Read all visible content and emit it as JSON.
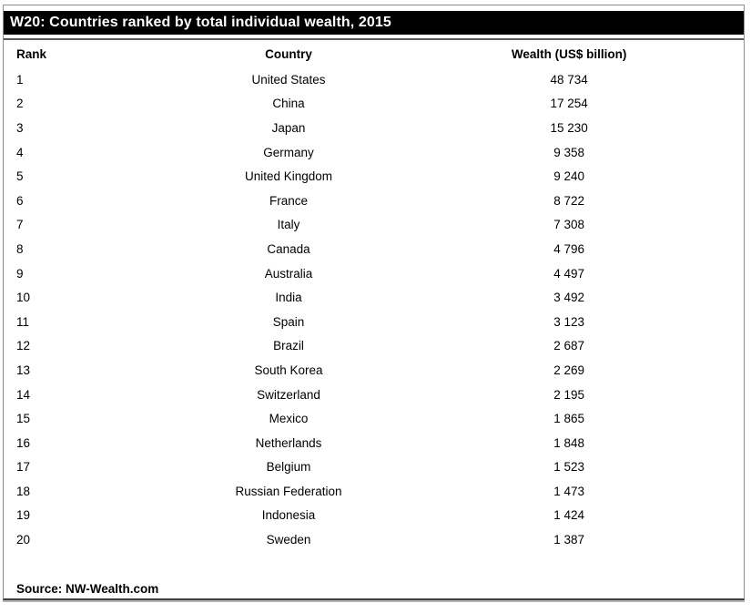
{
  "title": "W20: Countries ranked by total individual wealth, 2015",
  "columns": [
    "Rank",
    "Country",
    "Wealth (US$ billion)"
  ],
  "source": "Source: NW-Wealth.com",
  "colors": {
    "title_bar_bg": "#000000",
    "title_bar_text": "#ffffff",
    "border": "#8f8f8f",
    "text": "#000000"
  },
  "rows": [
    {
      "rank": "1",
      "country": "United States",
      "wealth": "48 734"
    },
    {
      "rank": "2",
      "country": "China",
      "wealth": "17 254"
    },
    {
      "rank": "3",
      "country": "Japan",
      "wealth": "15 230"
    },
    {
      "rank": "4",
      "country": "Germany",
      "wealth": "9 358"
    },
    {
      "rank": "5",
      "country": "United Kingdom",
      "wealth": "9 240"
    },
    {
      "rank": "6",
      "country": "France",
      "wealth": "8 722"
    },
    {
      "rank": "7",
      "country": "Italy",
      "wealth": "7 308"
    },
    {
      "rank": "8",
      "country": "Canada",
      "wealth": "4 796"
    },
    {
      "rank": "9",
      "country": "Australia",
      "wealth": "4 497"
    },
    {
      "rank": "10",
      "country": "India",
      "wealth": "3 492"
    },
    {
      "rank": "11",
      "country": "Spain",
      "wealth": "3 123"
    },
    {
      "rank": "12",
      "country": "Brazil",
      "wealth": "2 687"
    },
    {
      "rank": "13",
      "country": "South Korea",
      "wealth": "2 269"
    },
    {
      "rank": "14",
      "country": "Switzerland",
      "wealth": "2 195"
    },
    {
      "rank": "15",
      "country": "Mexico",
      "wealth": "1 865"
    },
    {
      "rank": "16",
      "country": "Netherlands",
      "wealth": "1 848"
    },
    {
      "rank": "17",
      "country": "Belgium",
      "wealth": "1 523"
    },
    {
      "rank": "18",
      "country": "Russian Federation",
      "wealth": "1 473"
    },
    {
      "rank": "19",
      "country": "Indonesia",
      "wealth": "1 424"
    },
    {
      "rank": "20",
      "country": "Sweden",
      "wealth": "1 387"
    }
  ],
  "chart_data": {
    "type": "table",
    "title": "W20: Countries ranked by total individual wealth, 2015",
    "columns": [
      "Rank",
      "Country",
      "Wealth (US$ billion)"
    ],
    "rows": [
      [
        1,
        "United States",
        48734
      ],
      [
        2,
        "China",
        17254
      ],
      [
        3,
        "Japan",
        15230
      ],
      [
        4,
        "Germany",
        9358
      ],
      [
        5,
        "United Kingdom",
        9240
      ],
      [
        6,
        "France",
        8722
      ],
      [
        7,
        "Italy",
        7308
      ],
      [
        8,
        "Canada",
        4796
      ],
      [
        9,
        "Australia",
        4497
      ],
      [
        10,
        "India",
        3492
      ],
      [
        11,
        "Spain",
        3123
      ],
      [
        12,
        "Brazil",
        2687
      ],
      [
        13,
        "South Korea",
        2269
      ],
      [
        14,
        "Switzerland",
        2195
      ],
      [
        15,
        "Mexico",
        1865
      ],
      [
        16,
        "Netherlands",
        1848
      ],
      [
        17,
        "Belgium",
        1523
      ],
      [
        18,
        "Russian Federation",
        1473
      ],
      [
        19,
        "Indonesia",
        1424
      ],
      [
        20,
        "Sweden",
        1387
      ]
    ],
    "source": "Source: NW-Wealth.com"
  }
}
